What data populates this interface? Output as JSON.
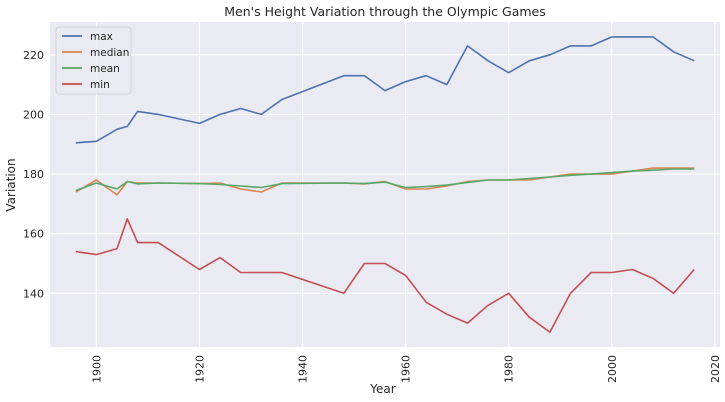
{
  "chart_data": {
    "type": "line",
    "title": "Men's Height Variation through the Olympic Games",
    "xlabel": "Year",
    "ylabel": "Variation",
    "xlim": [
      1891,
      2021
    ],
    "ylim": [
      122,
      231
    ],
    "xticks": [
      1900,
      1920,
      1940,
      1960,
      1980,
      2000,
      2020
    ],
    "yticks": [
      140,
      160,
      180,
      200,
      220
    ],
    "xtick_labels": [
      "1900",
      "1920",
      "1940",
      "1960",
      "1980",
      "2000",
      "2020"
    ],
    "ytick_labels": [
      "140",
      "160",
      "180",
      "200",
      "220"
    ],
    "grid": true,
    "legend_position": "top-left",
    "x": [
      1896,
      1900,
      1904,
      1906,
      1908,
      1912,
      1920,
      1924,
      1928,
      1932,
      1936,
      1948,
      1952,
      1956,
      1960,
      1964,
      1968,
      1972,
      1976,
      1980,
      1984,
      1988,
      1992,
      1996,
      2000,
      2004,
      2008,
      2012,
      2016
    ],
    "series": [
      {
        "name": "max",
        "color": "#4c72b0",
        "values": [
          190.5,
          191,
          195,
          196,
          201,
          200,
          197,
          200,
          202,
          200,
          205,
          213,
          213,
          208,
          211,
          213,
          210,
          223,
          218,
          214,
          218,
          220,
          223,
          223,
          226,
          226,
          226,
          221,
          218
        ]
      },
      {
        "name": "median",
        "color": "#dd8452",
        "values": [
          174,
          178,
          173,
          177.5,
          177,
          177,
          176.8,
          177,
          175,
          174,
          177,
          177,
          176.7,
          177.5,
          175,
          175,
          176,
          177.5,
          178,
          178,
          178,
          179,
          180,
          180,
          180,
          181,
          182,
          182,
          182
        ]
      },
      {
        "name": "mean",
        "color": "#55a868",
        "values": [
          174.5,
          177,
          175,
          177.5,
          176.7,
          177,
          176.8,
          176.5,
          176,
          175.5,
          176.8,
          177,
          176.8,
          177.3,
          175.5,
          175.8,
          176.3,
          177.2,
          178,
          178,
          178.5,
          179,
          179.6,
          180,
          180.5,
          181,
          181.3,
          181.7,
          181.7
        ]
      },
      {
        "name": "min",
        "color": "#c44e52",
        "values": [
          154,
          153,
          155,
          165,
          157,
          157,
          148,
          152,
          147,
          147,
          147,
          140,
          150,
          150,
          146,
          137,
          133,
          130,
          136,
          140,
          132,
          127,
          140,
          147,
          147,
          148,
          145,
          140,
          148
        ]
      }
    ]
  }
}
